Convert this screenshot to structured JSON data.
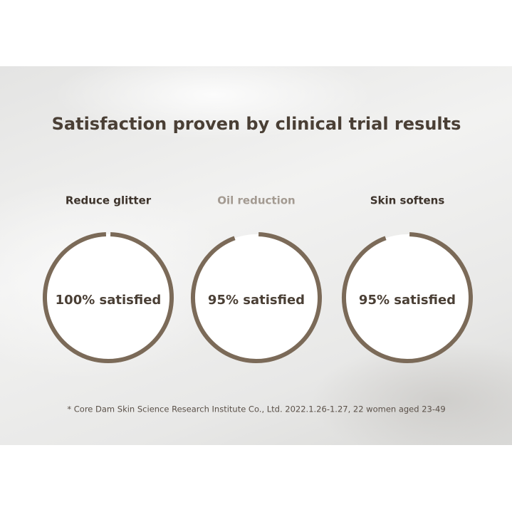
{
  "title": "Satisfaction proven by clinical trial results",
  "items": [
    {
      "label": "Reduce glitter",
      "value": 100,
      "value_label": "100% satisfied"
    },
    {
      "label": "Oil reduction",
      "value": 95,
      "value_label": "95% satisfied"
    },
    {
      "label": "Skin softens",
      "value": 95,
      "value_label": "95% satisfied"
    }
  ],
  "footnote": "* Core Dam Skin Science Research Institute Co., Ltd. 2022.1.26-1.27, 22 women aged 23-49"
}
